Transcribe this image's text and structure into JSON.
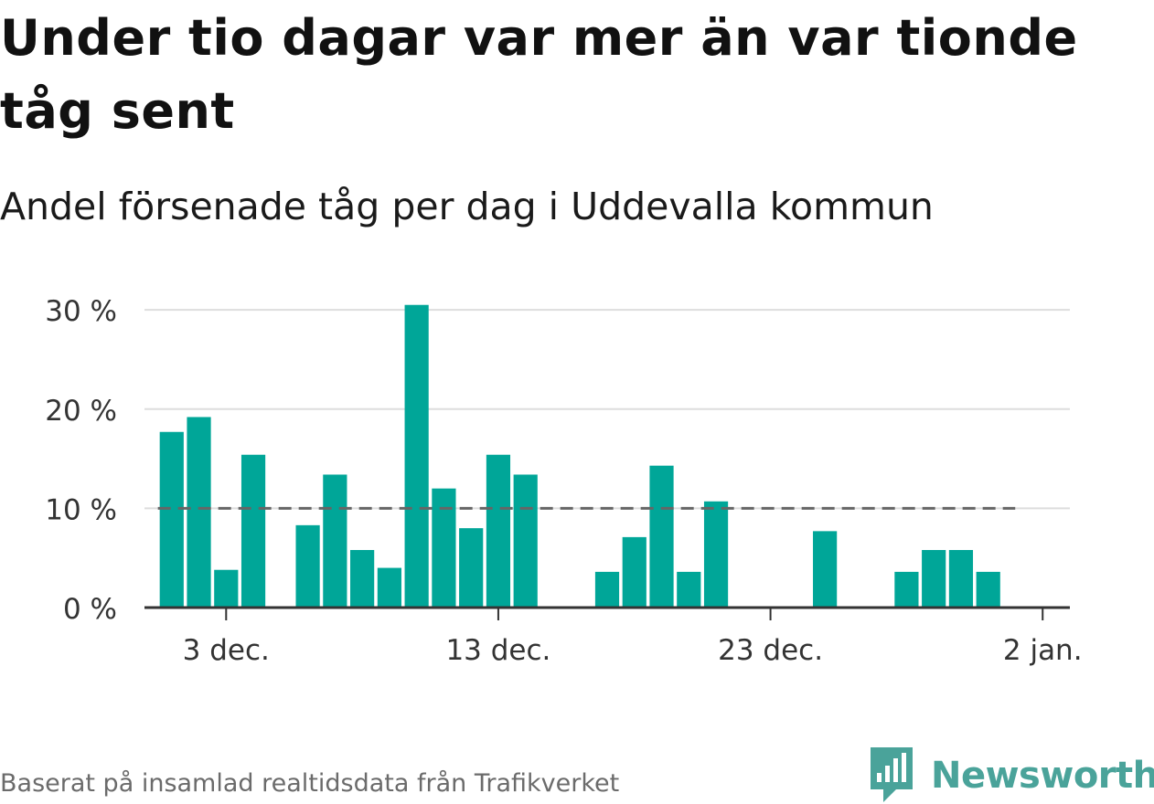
{
  "title": "Under tio dagar var mer än var tionde tåg sent",
  "subtitle": "Andel försenade tåg per dag i Uddevalla kommun",
  "source": "Baserat på insamlad realtidsdata från Trafikverket",
  "brand": {
    "name": "Newsworthy",
    "color": "#4aa39a",
    "icon": "newsworthy-logo-icon"
  },
  "colors": {
    "bar": "#00a698",
    "reference": "#666666",
    "grid": "#dddddd",
    "axis": "#333333"
  },
  "chart_data": {
    "type": "bar",
    "title": "Under tio dagar var mer än var tionde tåg sent",
    "subtitle": "Andel försenade tåg per dag i Uddevalla kommun",
    "xlabel": "",
    "ylabel": "",
    "x": [
      "2024-12-01",
      "2024-12-02",
      "2024-12-03",
      "2024-12-04",
      "2024-12-05",
      "2024-12-06",
      "2024-12-07",
      "2024-12-08",
      "2024-12-09",
      "2024-12-10",
      "2024-12-11",
      "2024-12-12",
      "2024-12-13",
      "2024-12-14",
      "2024-12-15",
      "2024-12-16",
      "2024-12-17",
      "2024-12-18",
      "2024-12-19",
      "2024-12-20",
      "2024-12-21",
      "2024-12-22",
      "2024-12-23",
      "2024-12-24",
      "2024-12-25",
      "2024-12-26",
      "2024-12-27",
      "2024-12-28",
      "2024-12-29",
      "2024-12-30",
      "2024-12-31"
    ],
    "values": [
      17.7,
      19.2,
      3.8,
      15.4,
      0,
      8.3,
      13.4,
      5.8,
      4.0,
      30.5,
      12.0,
      8.0,
      15.4,
      13.4,
      0,
      0,
      3.6,
      7.1,
      14.3,
      3.6,
      10.7,
      0,
      0,
      0,
      7.7,
      0,
      0,
      3.6,
      5.8,
      5.8,
      3.6
    ],
    "reference_line": {
      "style": "dashed",
      "value": 10,
      "from": "2024-12-01",
      "to": "2025-01-02"
    },
    "ylim": [
      0,
      32
    ],
    "yticks": [
      0,
      10,
      20,
      30
    ],
    "ytick_labels": [
      "0 %",
      "10 %",
      "20 %",
      "30 %"
    ],
    "xticks": [
      "2024-12-03",
      "2024-12-13",
      "2024-12-23",
      "2025-01-02"
    ],
    "xtick_labels": [
      "3 dec.",
      "13 dec.",
      "23 dec.",
      "2 jan."
    ],
    "xlim": [
      "2024-11-30",
      "2025-01-03"
    ],
    "grid": true,
    "legend": "none"
  }
}
